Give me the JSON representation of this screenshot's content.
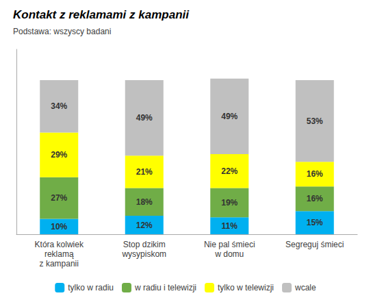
{
  "chart_data": {
    "type": "bar",
    "title": "Kontakt z reklamami z kampanii",
    "subtitle": "Podstawa: wszyscy badani",
    "categories": [
      "Która kolwiek\nreklamą\nz kampanii",
      "Stop dzikim\nwysypiskom",
      "Nie pal śmieci\nw domu",
      "Segreguj śmieci"
    ],
    "series": [
      {
        "name": "tylko w radiu",
        "color": "#00b0f0",
        "values": [
          10,
          12,
          11,
          15
        ],
        "value_labels": [
          "10%",
          "12%",
          "11%",
          "15%"
        ]
      },
      {
        "name": "w radiu i telewizji",
        "color": "#70ad47",
        "values": [
          27,
          18,
          19,
          16
        ],
        "value_labels": [
          "27%",
          "18%",
          "19%",
          "16%"
        ]
      },
      {
        "name": "tylko w telewizji",
        "color": "#ffff00",
        "values": [
          29,
          21,
          22,
          16
        ],
        "value_labels": [
          "29%",
          "21%",
          "22%",
          "16%"
        ]
      },
      {
        "name": "wcale",
        "color": "#c0c0c0",
        "values": [
          34,
          49,
          49,
          53
        ],
        "value_labels": [
          "34%",
          "49%",
          "49%",
          "53%"
        ]
      }
    ],
    "stacked": true,
    "data_labels": true,
    "ylim": [
      0,
      120
    ],
    "yticks": [],
    "tick_labels": "x",
    "grid": false,
    "legend": "bottom"
  }
}
